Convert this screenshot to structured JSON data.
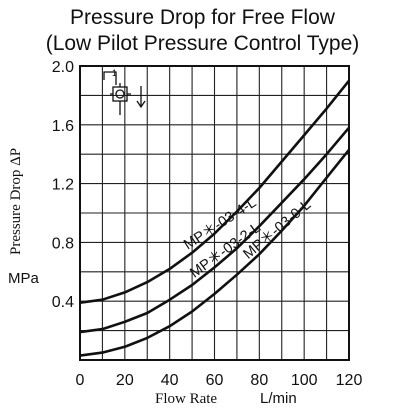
{
  "chart_data": {
    "type": "line",
    "title_line1": "Pressure Drop for Free Flow",
    "title_line2": "(Low Pilot Pressure Control Type)",
    "ylabel": "Pressure Drop ΔP",
    "yunit": "MPa",
    "xlabel": "Flow Rate",
    "xunit": "L/min",
    "xlim": [
      0,
      120
    ],
    "ylim": [
      0,
      2.0
    ],
    "xticks": [
      "0",
      "20",
      "40",
      "60",
      "80",
      "100",
      "120"
    ],
    "yticks": [
      "0.4",
      "0.8",
      "1.2",
      "1.6",
      "2.0"
    ],
    "grid": true,
    "series": [
      {
        "name": "MP＊-03-4-L",
        "x": [
          0,
          10,
          20,
          30,
          40,
          50,
          60,
          70,
          80,
          90,
          100,
          110,
          120
        ],
        "y": [
          0.39,
          0.41,
          0.46,
          0.53,
          0.62,
          0.73,
          0.86,
          1.01,
          1.17,
          1.35,
          1.53,
          1.71,
          1.9
        ]
      },
      {
        "name": "MP＊-03-2-L",
        "x": [
          0,
          10,
          20,
          30,
          40,
          50,
          60,
          70,
          80,
          90,
          100,
          110,
          120
        ],
        "y": [
          0.19,
          0.21,
          0.26,
          0.32,
          0.41,
          0.51,
          0.63,
          0.76,
          0.91,
          1.07,
          1.23,
          1.4,
          1.58
        ]
      },
      {
        "name": "MP＊-03-0-L",
        "x": [
          0,
          10,
          20,
          30,
          40,
          50,
          60,
          70,
          80,
          90,
          100,
          110,
          120
        ],
        "y": [
          0.03,
          0.05,
          0.09,
          0.15,
          0.23,
          0.33,
          0.45,
          0.58,
          0.72,
          0.88,
          1.05,
          1.24,
          1.43
        ]
      }
    ]
  }
}
